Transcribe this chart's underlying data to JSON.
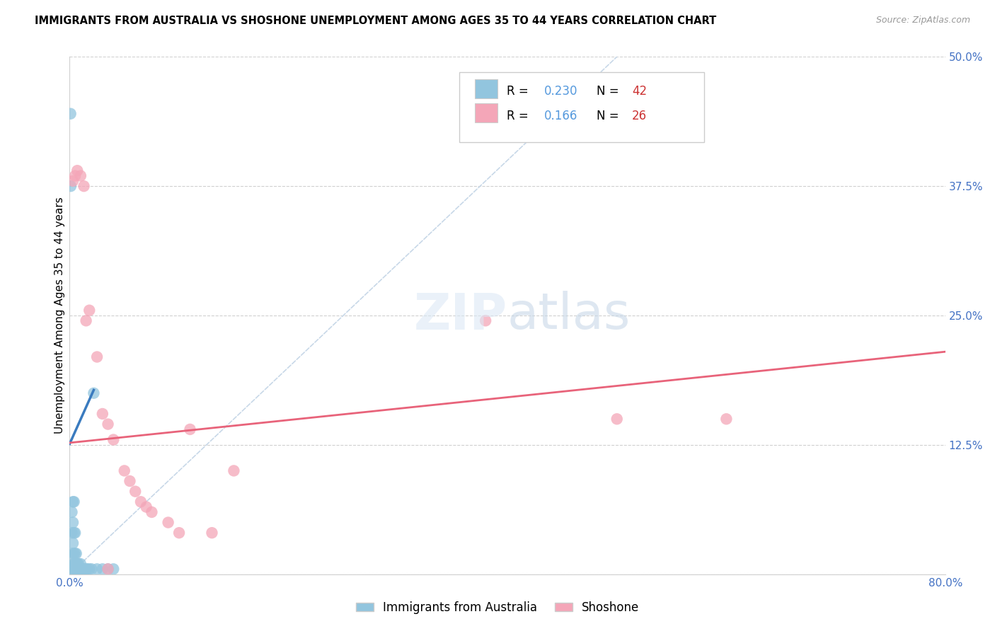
{
  "title": "IMMIGRANTS FROM AUSTRALIA VS SHOSHONE UNEMPLOYMENT AMONG AGES 35 TO 44 YEARS CORRELATION CHART",
  "source": "Source: ZipAtlas.com",
  "ylabel": "Unemployment Among Ages 35 to 44 years",
  "xlim": [
    0.0,
    0.8
  ],
  "ylim": [
    0.0,
    0.5
  ],
  "xticks": [
    0.0,
    0.1,
    0.2,
    0.3,
    0.4,
    0.5,
    0.6,
    0.7,
    0.8
  ],
  "yticks": [
    0.0,
    0.125,
    0.25,
    0.375,
    0.5
  ],
  "xticklabels": [
    "0.0%",
    "",
    "",
    "",
    "",
    "",
    "",
    "",
    "80.0%"
  ],
  "yticklabels": [
    "",
    "12.5%",
    "25.0%",
    "37.5%",
    "50.0%"
  ],
  "blue_R": 0.23,
  "blue_N": 42,
  "pink_R": 0.166,
  "pink_N": 26,
  "blue_color": "#92c5de",
  "pink_color": "#f4a6b8",
  "blue_line_color": "#3a7bbf",
  "pink_line_color": "#e8637a",
  "diagonal_color": "#c8d8e8",
  "tick_color": "#4472c4",
  "blue_points": [
    [
      0.0008,
      0.445
    ],
    [
      0.001,
      0.375
    ],
    [
      0.002,
      0.005
    ],
    [
      0.002,
      0.02
    ],
    [
      0.002,
      0.04
    ],
    [
      0.002,
      0.06
    ],
    [
      0.003,
      0.005
    ],
    [
      0.003,
      0.01
    ],
    [
      0.003,
      0.03
    ],
    [
      0.003,
      0.05
    ],
    [
      0.003,
      0.07
    ],
    [
      0.004,
      0.005
    ],
    [
      0.004,
      0.01
    ],
    [
      0.004,
      0.02
    ],
    [
      0.004,
      0.04
    ],
    [
      0.004,
      0.07
    ],
    [
      0.005,
      0.005
    ],
    [
      0.005,
      0.01
    ],
    [
      0.005,
      0.02
    ],
    [
      0.005,
      0.04
    ],
    [
      0.006,
      0.005
    ],
    [
      0.006,
      0.01
    ],
    [
      0.006,
      0.02
    ],
    [
      0.007,
      0.005
    ],
    [
      0.007,
      0.01
    ],
    [
      0.008,
      0.005
    ],
    [
      0.008,
      0.01
    ],
    [
      0.009,
      0.005
    ],
    [
      0.01,
      0.005
    ],
    [
      0.01,
      0.01
    ],
    [
      0.011,
      0.005
    ],
    [
      0.012,
      0.005
    ],
    [
      0.013,
      0.005
    ],
    [
      0.015,
      0.005
    ],
    [
      0.016,
      0.005
    ],
    [
      0.018,
      0.005
    ],
    [
      0.02,
      0.005
    ],
    [
      0.022,
      0.175
    ],
    [
      0.025,
      0.005
    ],
    [
      0.03,
      0.005
    ],
    [
      0.035,
      0.005
    ],
    [
      0.04,
      0.005
    ]
  ],
  "pink_points": [
    [
      0.003,
      0.38
    ],
    [
      0.005,
      0.385
    ],
    [
      0.007,
      0.39
    ],
    [
      0.01,
      0.385
    ],
    [
      0.013,
      0.375
    ],
    [
      0.015,
      0.245
    ],
    [
      0.018,
      0.255
    ],
    [
      0.025,
      0.21
    ],
    [
      0.03,
      0.155
    ],
    [
      0.035,
      0.145
    ],
    [
      0.04,
      0.13
    ],
    [
      0.05,
      0.1
    ],
    [
      0.055,
      0.09
    ],
    [
      0.06,
      0.08
    ],
    [
      0.065,
      0.07
    ],
    [
      0.07,
      0.065
    ],
    [
      0.075,
      0.06
    ],
    [
      0.09,
      0.05
    ],
    [
      0.1,
      0.04
    ],
    [
      0.11,
      0.14
    ],
    [
      0.13,
      0.04
    ],
    [
      0.15,
      0.1
    ],
    [
      0.035,
      0.005
    ],
    [
      0.5,
      0.15
    ],
    [
      0.6,
      0.15
    ],
    [
      0.38,
      0.245
    ]
  ],
  "blue_line": [
    [
      0.0,
      0.126
    ],
    [
      0.022,
      0.178
    ]
  ],
  "pink_line": [
    [
      0.0,
      0.127
    ],
    [
      0.8,
      0.215
    ]
  ]
}
